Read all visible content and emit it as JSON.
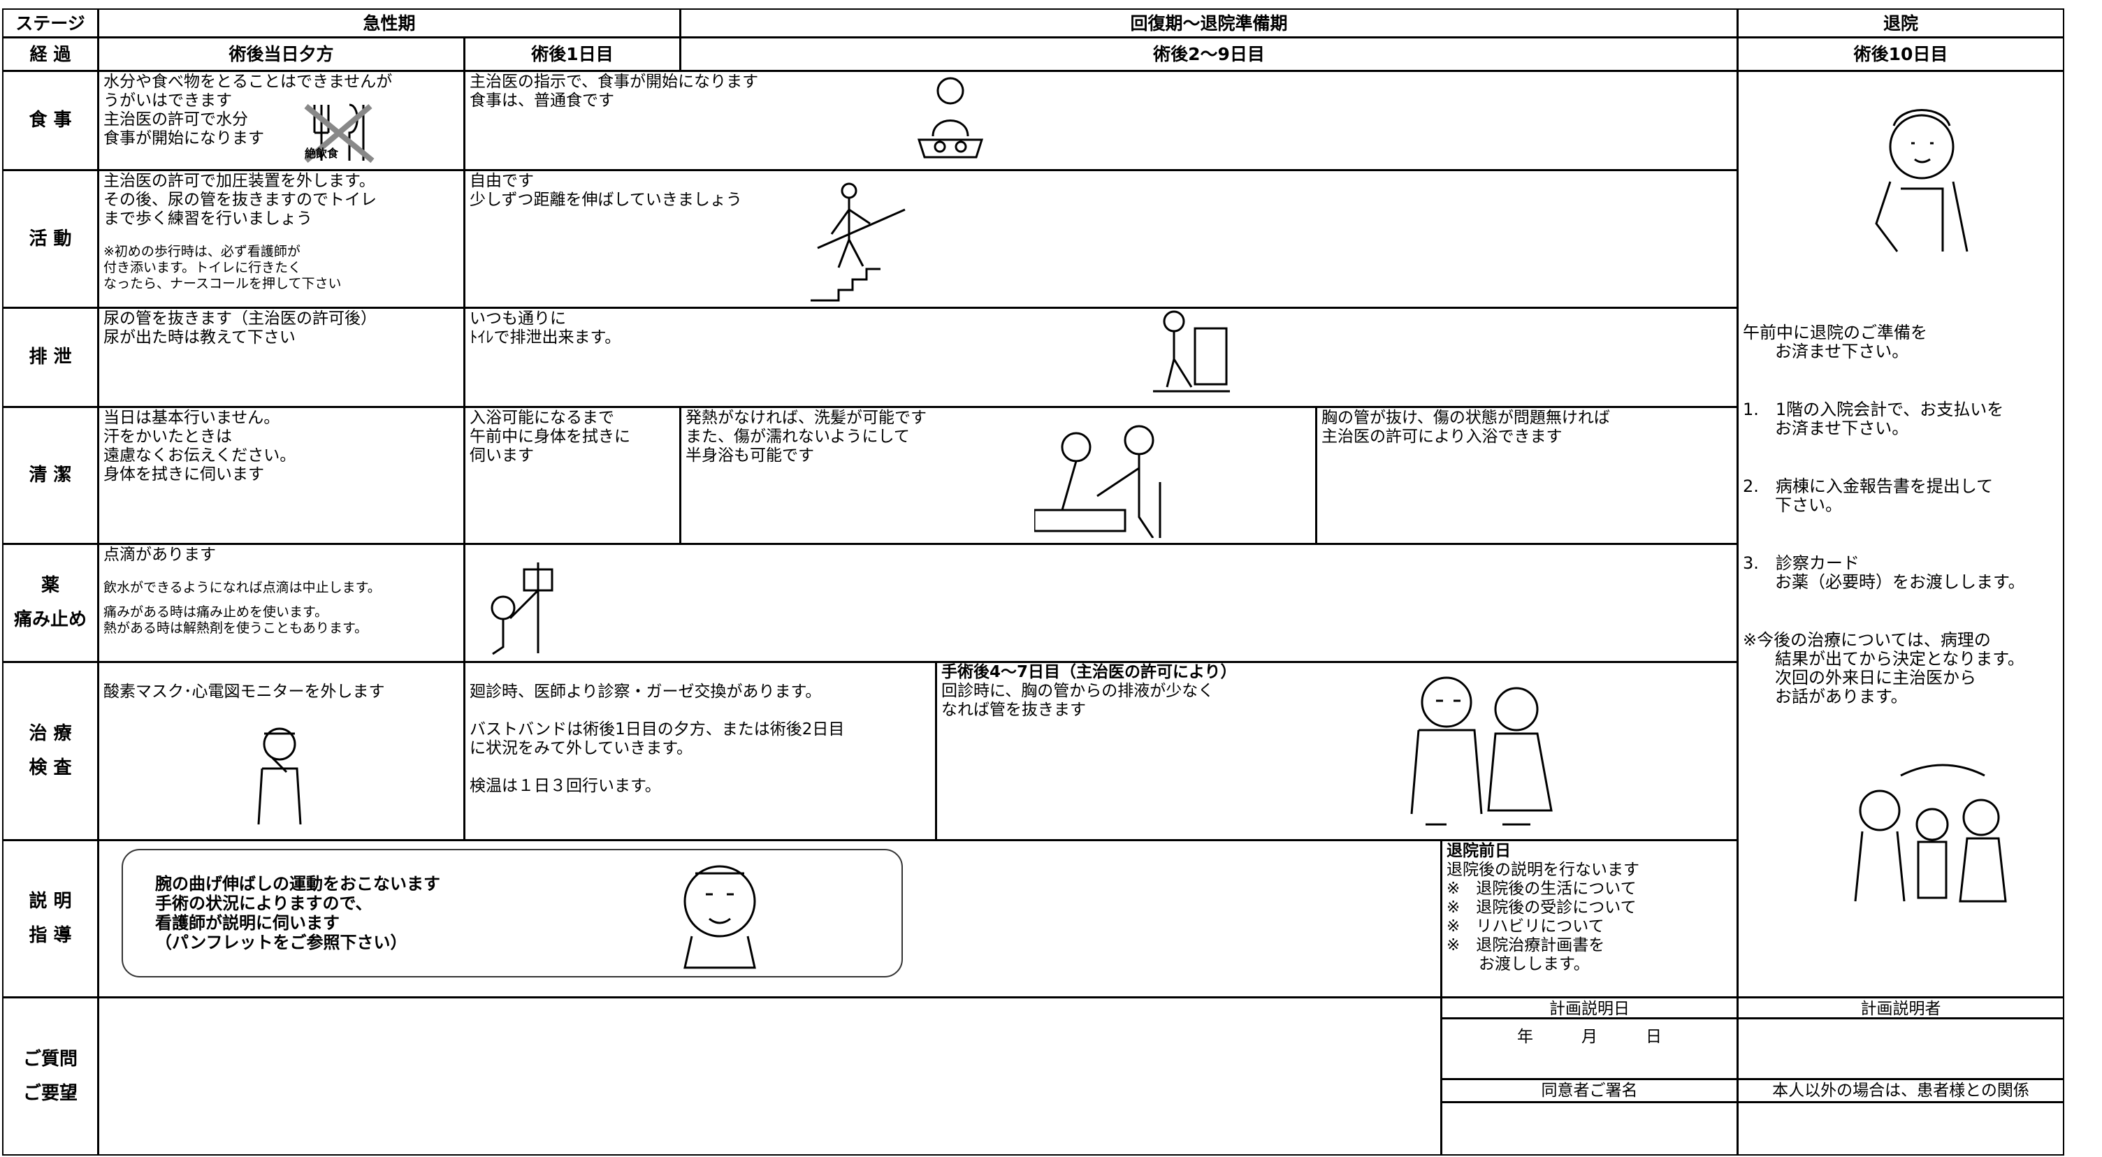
{
  "header": {
    "stage_label": "ステージ",
    "stages": [
      "急性期",
      "回復期～退院準備期",
      "退院"
    ]
  },
  "progress": {
    "label": "経 過",
    "periods": [
      "術後当日夕方",
      "術後1日目",
      "術後2～9日目",
      "術後10日目"
    ]
  },
  "rows": [
    {
      "label": [
        "食 事"
      ],
      "cells": [
        {
          "paras": [
            [
              "水分や食べ物をとることはできませんが",
              "うがいはできます",
              "主治医の許可で水分",
              "食事が開始になります"
            ]
          ]
        },
        {
          "paras": [
            [
              "主治医の指示で、食事が開始になります",
              "食事は、普通食です"
            ]
          ]
        }
      ]
    },
    {
      "label": [
        "活 動"
      ],
      "cells": [
        {
          "paras": [
            [
              "主治医の許可で加圧装置を外します。",
              "その後、尿の管を抜きますのでトイレ",
              "まで歩く練習を行いましょう"
            ]
          ],
          "notes": [
            [
              "※初めの歩行時は、必ず看護師が",
              "付き添います。トイレに行きたく",
              "なったら、ナースコールを押して下さい"
            ]
          ]
        },
        {
          "paras": [
            [
              "自由です",
              "少しずつ距離を伸ばしていきましょう"
            ]
          ]
        }
      ]
    },
    {
      "label": [
        "排 泄"
      ],
      "cells": [
        {
          "paras": [
            [
              "尿の管を抜きます（主治医の許可後）",
              "尿が出た時は教えて下さい"
            ]
          ]
        },
        {
          "paras": [
            [
              "いつも通りに",
              "ﾄｲﾚで排泄出来ます。"
            ]
          ]
        }
      ]
    },
    {
      "label": [
        "清 潔"
      ],
      "cells": [
        {
          "paras": [
            [
              "当日は基本行いません。",
              "汗をかいたときは",
              "遠慮なくお伝えください。",
              "身体を拭きに伺います"
            ]
          ]
        },
        {
          "paras": [
            [
              "入浴可能になるまで",
              "午前中に身体を拭きに",
              "伺います"
            ]
          ]
        },
        {
          "paras": [
            [
              "発熱がなければ、洗髪が可能です",
              "また、傷が濡れないようにして",
              "半身浴も可能です"
            ]
          ]
        },
        {
          "paras": [
            [
              "胸の管が抜け、傷の状態が問題無ければ",
              "主治医の許可により入浴できます"
            ]
          ]
        }
      ]
    },
    {
      "label": [
        "薬",
        "痛み止め"
      ],
      "cells": [
        {
          "paras": [
            [
              "点滴があります"
            ]
          ],
          "notes": [
            [
              "飲水ができるようになれば点滴は中止します。"
            ],
            [
              "痛みがある時は痛み止めを使います。",
              "熱がある時は解熱剤を使うこともあります。"
            ]
          ]
        }
      ]
    },
    {
      "label": [
        "治 療",
        "検 査"
      ],
      "cells": [
        {
          "paras": [
            [
              "酸素マスク･心電図モニターを外します"
            ]
          ]
        },
        {
          "paras": [
            [
              "廻診時、医師より診察・ガーゼ交換があります。"
            ],
            [
              "バストバンドは術後1日目の夕方、または術後2日目",
              "に状況をみて外していきます。"
            ],
            [
              "検温は１日３回行います。"
            ]
          ]
        },
        {
          "heading": "手術後4～7日目（主治医の許可により）",
          "paras": [
            [
              "回診時に、胸の管からの排液が少なく",
              "なれば管を抜きます"
            ]
          ]
        }
      ]
    },
    {
      "label": [
        "説 明",
        "指 導"
      ],
      "cells": [
        {
          "paras": [
            [
              "腕の曲げ伸ばしの運動をおこないます",
              "手術の状況によりますので、",
              "看護師が説明に伺います",
              "（パンフレットをご参照下さい）"
            ]
          ]
        },
        {
          "heading": "退院前日",
          "paras": [
            [
              "退院後の説明を行ないます",
              "※　退院後の生活について",
              "※　退院後の受診について",
              "※　リハビリについて",
              "※　退院治療計画書を",
              "　　お渡しします。"
            ]
          ]
        }
      ]
    },
    {
      "label": [
        "ご質問",
        "ご要望"
      ],
      "cells": []
    }
  ],
  "discharge": {
    "paras": [
      [
        "午前中に退院のご準備を",
        "お済ませ下さい。"
      ],
      [
        "1.　1階の入院会計で、お支払いを",
        "お済ませ下さい。"
      ],
      [
        "2.　病棟に入金報告書を提出して",
        "下さい。"
      ],
      [
        "3.　診察カード",
        "お薬（必要時）をお渡しします。"
      ],
      [
        "※今後の治療については、病理の",
        "結果が出てから決定となります。",
        "次回の外来日に主治医から",
        "お話があります。"
      ]
    ]
  },
  "food_icon_label": "絶飲食",
  "signature": {
    "plan_date_label": "計画説明日",
    "date_format": "年　　　月　　　日",
    "consent_label": "同意者ご署名",
    "planner_label": "計画説明者",
    "relation_label": "本人以外の場合は、患者様との関係"
  }
}
